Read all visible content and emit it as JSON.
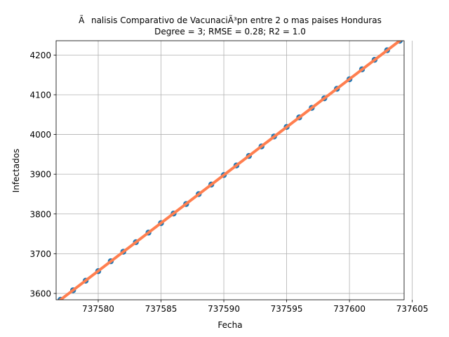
{
  "chart_data": {
    "type": "line",
    "title": "Ãnalisis Comparativo de VacunaciÃ³pn entre 2 o mas paises Honduras",
    "subtitle": "Degree = 3; RMSE = 0.28; R2 = 1.0",
    "xlabel": "Fecha",
    "ylabel": "Infectados",
    "xlim": [
      737576.65,
      737604.35
    ],
    "ylim": [
      3584,
      4236
    ],
    "x_ticks": [
      737580,
      737585,
      737590,
      737595,
      737600,
      737605
    ],
    "y_ticks": [
      3600,
      3700,
      3800,
      3900,
      4000,
      4100,
      4200
    ],
    "x_tick_labels": [
      "737580",
      "737585",
      "737590",
      "737595",
      "737600",
      "737605"
    ],
    "y_tick_labels": [
      "3600",
      "3700",
      "3800",
      "3900",
      "4000",
      "4100",
      "4200"
    ],
    "grid": true,
    "series": [
      {
        "kind": "scatter",
        "color": "#1f77b4",
        "x": [
          737577,
          737578,
          737579,
          737580,
          737581,
          737582,
          737583,
          737584,
          737585,
          737586,
          737587,
          737588,
          737589,
          737590,
          737591,
          737592,
          737593,
          737594,
          737595,
          737596,
          737597,
          737598,
          737599,
          737600,
          737601,
          737602,
          737603,
          737604
        ],
        "y": [
          3584,
          3608,
          3632,
          3656,
          3681,
          3705,
          3729,
          3753,
          3777,
          3801,
          3825,
          3850,
          3874,
          3898,
          3922,
          3946,
          3970,
          3995,
          4019,
          4043,
          4067,
          4091,
          4115,
          4139,
          4164,
          4188,
          4212,
          4236
        ]
      },
      {
        "kind": "line",
        "color": "#ff7f50",
        "x": [
          737576.65,
          737604.35
        ],
        "y": [
          3575.6,
          4244.4
        ]
      }
    ]
  }
}
